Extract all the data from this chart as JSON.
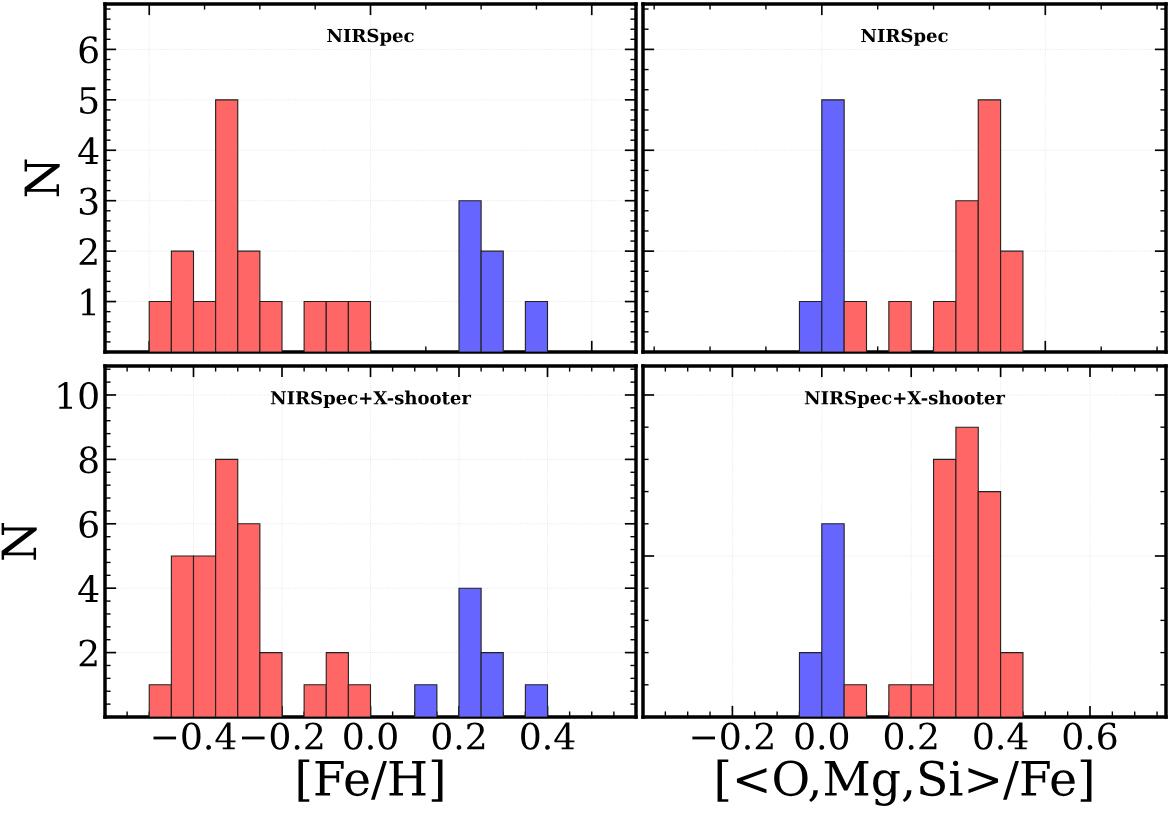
{
  "chart_data": [
    {
      "type": "histogram",
      "annotations": [
        "NIRSpec"
      ],
      "ylabel": "N",
      "xlim": [
        -0.6,
        0.6
      ],
      "ylim": [
        0,
        6.9
      ],
      "yticks": [
        1,
        2,
        3,
        4,
        5,
        6
      ],
      "tick_labels": "y",
      "grid": true,
      "bins": [
        -0.5,
        -0.45,
        -0.4,
        -0.35,
        -0.3,
        -0.25,
        -0.2,
        -0.15,
        -0.1,
        -0.05,
        0.0,
        0.05,
        0.1,
        0.15,
        0.2,
        0.25,
        0.3,
        0.35,
        0.4
      ],
      "series": [
        {
          "color": "#ff6666",
          "values": [
            1,
            2,
            1,
            5,
            2,
            1,
            0,
            1,
            1,
            1,
            0,
            0,
            0,
            0,
            0,
            0,
            0,
            0
          ]
        },
        {
          "color": "#6666ff",
          "values": [
            0,
            0,
            0,
            0,
            0,
            0,
            0,
            0,
            0,
            0,
            0,
            0,
            0,
            0,
            3,
            2,
            0,
            1
          ]
        }
      ]
    },
    {
      "type": "histogram",
      "annotations": [
        "NIRSpec"
      ],
      "xlim": [
        -0.4,
        0.77
      ],
      "ylim": [
        0,
        6.9
      ],
      "tick_labels": false,
      "grid": true,
      "bins": [
        -0.05,
        0.0,
        0.05,
        0.1,
        0.15,
        0.2,
        0.25,
        0.3,
        0.35,
        0.4,
        0.45
      ],
      "series": [
        {
          "color": "#6666ff",
          "values": [
            1,
            5,
            0,
            0,
            0,
            0,
            0,
            0,
            0,
            0
          ]
        },
        {
          "color": "#ff6666",
          "values": [
            0,
            0,
            1,
            0,
            1,
            0,
            1,
            3,
            5,
            2
          ]
        }
      ]
    },
    {
      "type": "histogram",
      "annotations": [
        "NIRSpec+X-shooter"
      ],
      "ylabel": "N",
      "xlabel": "[Fe/H]",
      "xlim": [
        -0.6,
        0.6
      ],
      "xticks": [
        {
          "value": -0.4,
          "label": "−0.4"
        },
        {
          "value": -0.2,
          "label": "−0.2"
        },
        {
          "value": 0.0,
          "label": "0.0"
        },
        {
          "value": 0.2,
          "label": "0.2"
        },
        {
          "value": 0.4,
          "label": "0.4"
        }
      ],
      "ylim": [
        0,
        10.9
      ],
      "yticks": [
        2,
        4,
        6,
        8,
        10
      ],
      "grid": true,
      "bins": [
        -0.5,
        -0.45,
        -0.4,
        -0.35,
        -0.3,
        -0.25,
        -0.2,
        -0.15,
        -0.1,
        -0.05,
        0.0,
        0.05,
        0.1,
        0.15,
        0.2,
        0.25,
        0.3,
        0.35,
        0.4
      ],
      "series": [
        {
          "color": "#ff6666",
          "values": [
            1,
            5,
            5,
            8,
            6,
            2,
            0,
            1,
            2,
            1,
            0,
            0,
            0,
            0,
            0,
            0,
            0,
            0
          ]
        },
        {
          "color": "#6666ff",
          "values": [
            0,
            0,
            0,
            0,
            0,
            0,
            0,
            0,
            0,
            0,
            0,
            0,
            1,
            0,
            4,
            2,
            0,
            1
          ]
        }
      ]
    },
    {
      "type": "histogram",
      "annotations": [
        "NIRSpec+X-shooter"
      ],
      "xlabel": "[<O,Mg,Si>/Fe]",
      "xlim": [
        -0.4,
        0.77
      ],
      "xticks": [
        {
          "value": -0.2,
          "label": "−0.2"
        },
        {
          "value": 0.0,
          "label": "0.0"
        },
        {
          "value": 0.2,
          "label": "0.2"
        },
        {
          "value": 0.4,
          "label": "0.4"
        },
        {
          "value": 0.6,
          "label": "0.6"
        }
      ],
      "ylim": [
        0,
        10.9
      ],
      "tick_labels": "x",
      "grid": true,
      "bins": [
        -0.05,
        0.0,
        0.05,
        0.1,
        0.15,
        0.2,
        0.25,
        0.3,
        0.35,
        0.4,
        0.45
      ],
      "series": [
        {
          "color": "#6666ff",
          "values": [
            2,
            6,
            0,
            0,
            0,
            0,
            0,
            0,
            0,
            0
          ]
        },
        {
          "color": "#ff6666",
          "values": [
            0,
            0,
            1,
            0,
            1,
            1,
            8,
            9,
            7,
            2
          ]
        }
      ]
    }
  ]
}
